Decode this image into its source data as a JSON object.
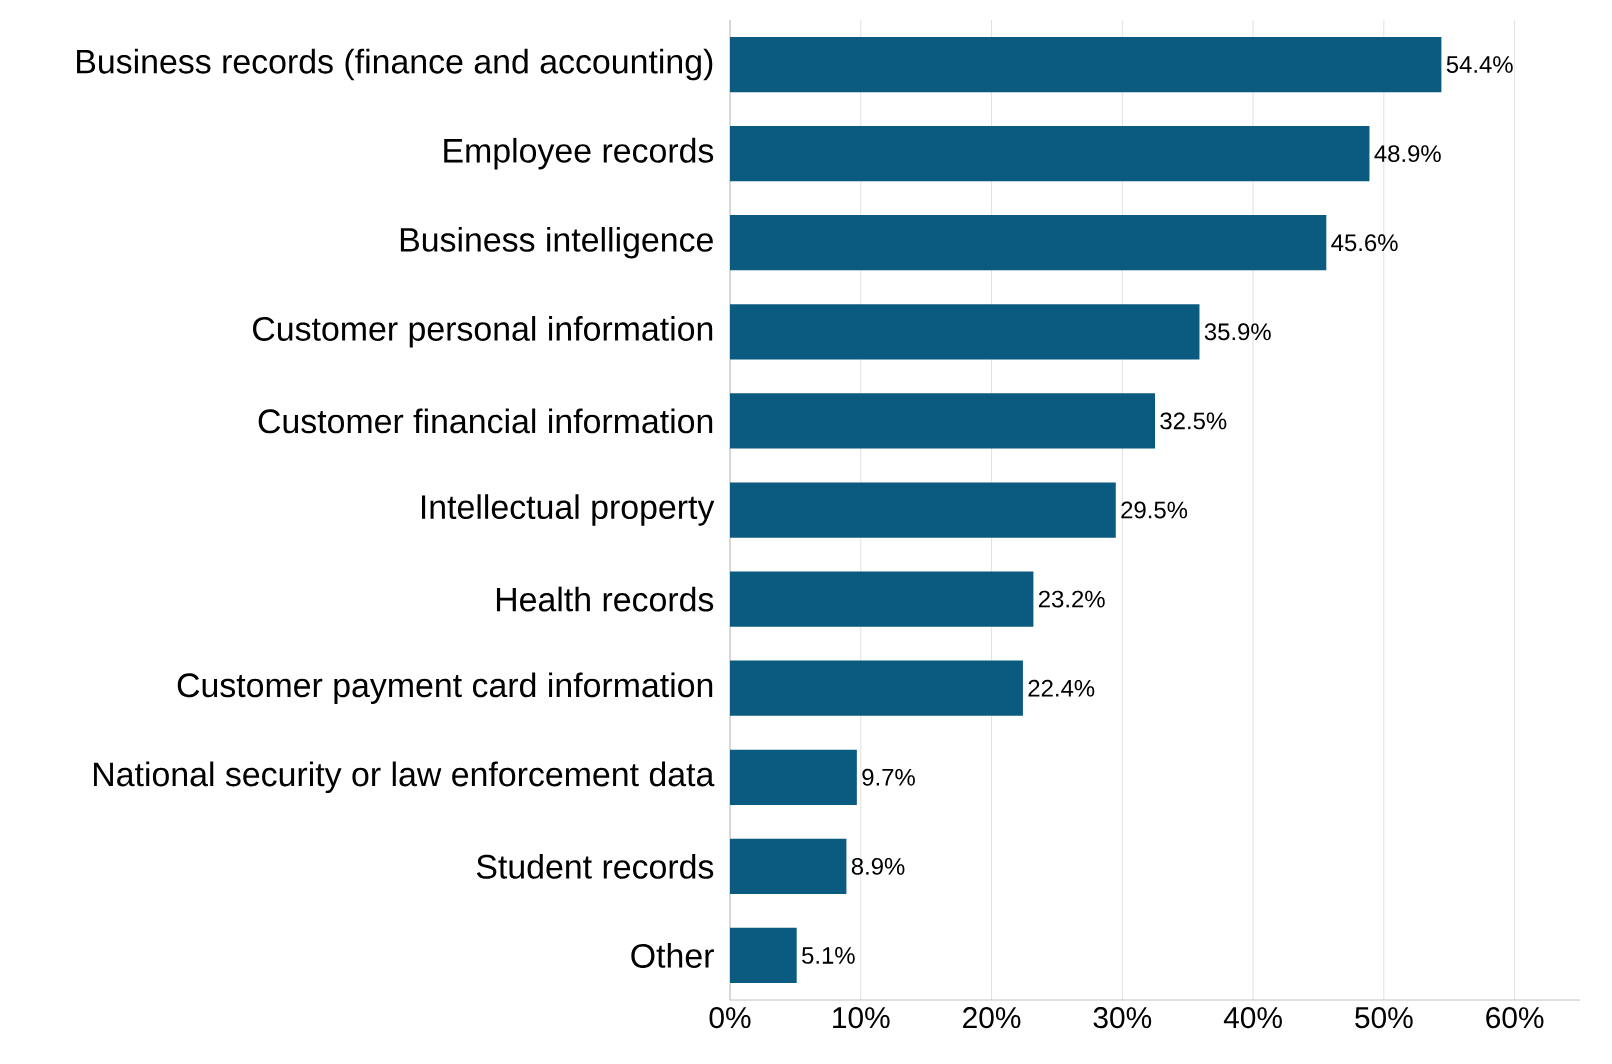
{
  "chart_data": {
    "type": "bar",
    "orientation": "horizontal",
    "categories": [
      "Business records (finance and accounting)",
      "Employee records",
      "Business intelligence",
      "Customer personal information",
      "Customer financial information",
      "Intellectual property",
      "Health records",
      "Customer payment card information",
      "National security or law enforcement data",
      "Student records",
      "Other"
    ],
    "values": [
      54.4,
      48.9,
      45.6,
      35.9,
      32.5,
      29.5,
      23.2,
      22.4,
      9.7,
      8.9,
      5.1
    ],
    "value_labels": [
      "54.4%",
      "48.9%",
      "45.6%",
      "35.9%",
      "32.5%",
      "29.5%",
      "23.2%",
      "22.4%",
      "9.7%",
      "8.9%",
      "5.1%"
    ],
    "color": "#0b5a80",
    "xlim": [
      0,
      65
    ],
    "xticks": [
      {
        "value": 0,
        "label": "0%"
      },
      {
        "value": 10,
        "label": "10%"
      },
      {
        "value": 20,
        "label": "20%"
      },
      {
        "value": 30,
        "label": "30%"
      },
      {
        "value": 40,
        "label": "40%"
      },
      {
        "value": 50,
        "label": "50%"
      },
      {
        "value": 60,
        "label": "60%"
      }
    ],
    "grid": "x"
  }
}
